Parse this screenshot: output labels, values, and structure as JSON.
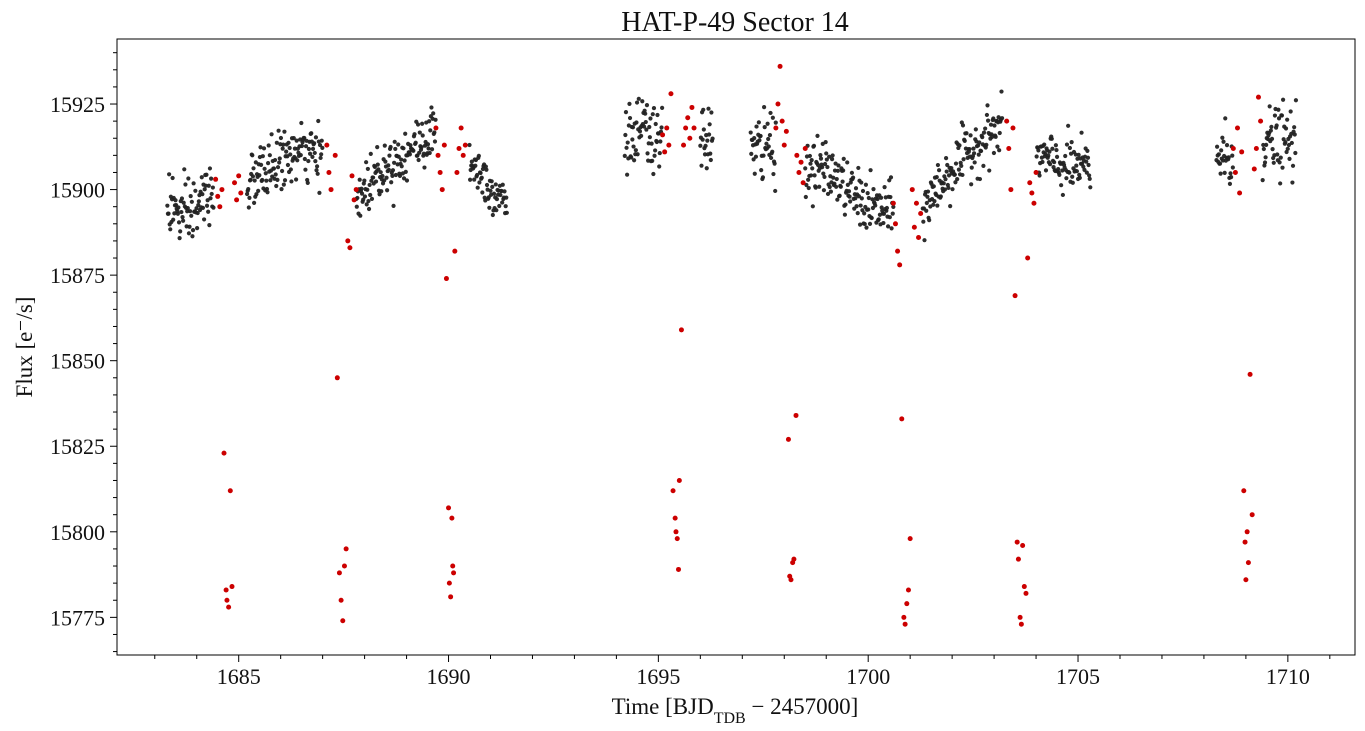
{
  "chart_data": {
    "type": "scatter",
    "title": "HAT-P-49 Sector 14",
    "xlabel": {
      "prefix": "Time [BJD",
      "subscript": "TDB",
      "suffix": " − 2457000]"
    },
    "ylabel": "Flux [e⁻/s]",
    "xlim": [
      1682.1,
      1711.6
    ],
    "ylim": [
      15764,
      15944
    ],
    "xticks": [
      1685,
      1690,
      1695,
      1700,
      1705,
      1710
    ],
    "yticks": [
      15775,
      15800,
      15825,
      15850,
      15875,
      15900,
      15925
    ],
    "grid": false,
    "legend": "none",
    "colors": {
      "out_of_transit": "#222222",
      "in_transit": "#cc0000"
    },
    "series": [
      {
        "role": "out_of_transit",
        "segments": [
          {
            "x_start": 1683.3,
            "x_end": 1684.4,
            "trend": [
              [
                1683.3,
                15897
              ],
              [
                1683.7,
                15891
              ],
              [
                1684.1,
                15896
              ],
              [
                1684.4,
                15900
              ]
            ],
            "scatter": 5
          },
          {
            "x_start": 1685.2,
            "x_end": 1687.0,
            "trend": [
              [
                1685.2,
                15901
              ],
              [
                1685.9,
                15908
              ],
              [
                1686.5,
                15911
              ],
              [
                1687.0,
                15909
              ]
            ],
            "scatter": 4
          },
          {
            "x_start": 1687.8,
            "x_end": 1689.7,
            "trend": [
              [
                1687.8,
                15897
              ],
              [
                1688.3,
                15905
              ],
              [
                1688.9,
                15910
              ],
              [
                1689.6,
                15916
              ]
            ],
            "scatter": 4
          },
          {
            "x_start": 1690.5,
            "x_end": 1691.4,
            "trend": [
              [
                1690.5,
                15910
              ],
              [
                1690.9,
                15902
              ],
              [
                1691.4,
                15897
              ]
            ],
            "scatter": 4
          },
          {
            "x_start": 1694.2,
            "x_end": 1695.1,
            "trend": [
              [
                1694.2,
                15914
              ],
              [
                1694.6,
                15917
              ],
              [
                1695.1,
                15912
              ]
            ],
            "scatter": 5
          },
          {
            "x_start": 1696.0,
            "x_end": 1696.3,
            "trend": [
              [
                1696.0,
                15915
              ],
              [
                1696.3,
                15917
              ]
            ],
            "scatter": 5
          },
          {
            "x_start": 1697.2,
            "x_end": 1697.8,
            "trend": [
              [
                1697.2,
                15910
              ],
              [
                1697.8,
                15914
              ]
            ],
            "scatter": 6
          },
          {
            "x_start": 1698.5,
            "x_end": 1700.6,
            "trend": [
              [
                1698.5,
                15906
              ],
              [
                1699.0,
                15906
              ],
              [
                1699.5,
                15900
              ],
              [
                1700.0,
                15895
              ],
              [
                1700.6,
                15893
              ]
            ],
            "scatter": 4
          },
          {
            "x_start": 1701.3,
            "x_end": 1703.2,
            "trend": [
              [
                1701.3,
                15894
              ],
              [
                1701.8,
                15903
              ],
              [
                1702.4,
                15911
              ],
              [
                1703.0,
                15917
              ]
            ],
            "scatter": 4
          },
          {
            "x_start": 1704.0,
            "x_end": 1705.3,
            "trend": [
              [
                1704.0,
                15910
              ],
              [
                1704.6,
                15907
              ],
              [
                1705.3,
                15906
              ]
            ],
            "scatter": 4
          },
          {
            "x_start": 1708.3,
            "x_end": 1708.7,
            "trend": [
              [
                1708.3,
                15910
              ],
              [
                1708.7,
                15909
              ]
            ],
            "scatter": 5
          },
          {
            "x_start": 1709.4,
            "x_end": 1710.2,
            "trend": [
              [
                1709.4,
                15914
              ],
              [
                1709.8,
                15914
              ],
              [
                1710.2,
                15913
              ]
            ],
            "scatter": 5
          }
        ]
      },
      {
        "role": "in_transit",
        "points": [
          [
            1684.45,
            15903
          ],
          [
            1684.5,
            15898
          ],
          [
            1684.55,
            15895
          ],
          [
            1684.6,
            15900
          ],
          [
            1684.65,
            15823
          ],
          [
            1684.7,
            15783
          ],
          [
            1684.72,
            15780
          ],
          [
            1684.76,
            15778
          ],
          [
            1684.8,
            15812
          ],
          [
            1684.84,
            15784
          ],
          [
            1684.9,
            15902
          ],
          [
            1684.95,
            15897
          ],
          [
            1685.0,
            15904
          ],
          [
            1685.05,
            15899
          ],
          [
            1687.1,
            15913
          ],
          [
            1687.15,
            15905
          ],
          [
            1687.2,
            15900
          ],
          [
            1687.3,
            15910
          ],
          [
            1687.35,
            15845
          ],
          [
            1687.4,
            15788
          ],
          [
            1687.44,
            15780
          ],
          [
            1687.48,
            15774
          ],
          [
            1687.52,
            15790
          ],
          [
            1687.56,
            15795
          ],
          [
            1687.6,
            15885
          ],
          [
            1687.65,
            15883
          ],
          [
            1687.7,
            15904
          ],
          [
            1687.75,
            15897
          ],
          [
            1687.8,
            15900
          ],
          [
            1689.7,
            15918
          ],
          [
            1689.75,
            15910
          ],
          [
            1689.8,
            15905
          ],
          [
            1689.85,
            15900
          ],
          [
            1689.9,
            15913
          ],
          [
            1689.95,
            15874
          ],
          [
            1690.0,
            15807
          ],
          [
            1690.02,
            15785
          ],
          [
            1690.05,
            15781
          ],
          [
            1690.08,
            15804
          ],
          [
            1690.1,
            15790
          ],
          [
            1690.12,
            15788
          ],
          [
            1690.15,
            15882
          ],
          [
            1690.2,
            15905
          ],
          [
            1690.25,
            15912
          ],
          [
            1690.3,
            15918
          ],
          [
            1690.35,
            15910
          ],
          [
            1690.4,
            15913
          ],
          [
            1695.1,
            15916
          ],
          [
            1695.15,
            15911
          ],
          [
            1695.2,
            15918
          ],
          [
            1695.25,
            15913
          ],
          [
            1695.3,
            15928
          ],
          [
            1695.35,
            15812
          ],
          [
            1695.4,
            15804
          ],
          [
            1695.42,
            15800
          ],
          [
            1695.45,
            15798
          ],
          [
            1695.48,
            15789
          ],
          [
            1695.5,
            15815
          ],
          [
            1695.55,
            15859
          ],
          [
            1695.6,
            15913
          ],
          [
            1695.65,
            15918
          ],
          [
            1695.7,
            15921
          ],
          [
            1695.75,
            15915
          ],
          [
            1695.8,
            15924
          ],
          [
            1695.85,
            15918
          ],
          [
            1697.8,
            15918
          ],
          [
            1697.85,
            15925
          ],
          [
            1697.9,
            15936
          ],
          [
            1697.95,
            15920
          ],
          [
            1698.0,
            15913
          ],
          [
            1698.05,
            15917
          ],
          [
            1698.1,
            15827
          ],
          [
            1698.13,
            15787
          ],
          [
            1698.16,
            15786
          ],
          [
            1698.2,
            15791
          ],
          [
            1698.23,
            15792
          ],
          [
            1698.28,
            15834
          ],
          [
            1698.3,
            15910
          ],
          [
            1698.35,
            15905
          ],
          [
            1698.4,
            15908
          ],
          [
            1698.45,
            15902
          ],
          [
            1698.5,
            15912
          ],
          [
            1700.6,
            15896
          ],
          [
            1700.65,
            15890
          ],
          [
            1700.7,
            15882
          ],
          [
            1700.75,
            15878
          ],
          [
            1700.8,
            15833
          ],
          [
            1700.85,
            15775
          ],
          [
            1700.88,
            15773
          ],
          [
            1700.92,
            15779
          ],
          [
            1700.96,
            15783
          ],
          [
            1701.0,
            15798
          ],
          [
            1701.05,
            15900
          ],
          [
            1701.1,
            15889
          ],
          [
            1701.15,
            15896
          ],
          [
            1701.2,
            15886
          ],
          [
            1701.25,
            15893
          ],
          [
            1703.3,
            15920
          ],
          [
            1703.35,
            15912
          ],
          [
            1703.4,
            15900
          ],
          [
            1703.45,
            15918
          ],
          [
            1703.5,
            15869
          ],
          [
            1703.55,
            15797
          ],
          [
            1703.58,
            15792
          ],
          [
            1703.62,
            15775
          ],
          [
            1703.65,
            15773
          ],
          [
            1703.68,
            15796
          ],
          [
            1703.72,
            15784
          ],
          [
            1703.76,
            15782
          ],
          [
            1703.8,
            15880
          ],
          [
            1703.85,
            15902
          ],
          [
            1703.9,
            15899
          ],
          [
            1703.95,
            15896
          ],
          [
            1704.0,
            15905
          ],
          [
            1708.7,
            15912
          ],
          [
            1708.75,
            15905
          ],
          [
            1708.8,
            15918
          ],
          [
            1708.85,
            15899
          ],
          [
            1708.9,
            15911
          ],
          [
            1708.95,
            15812
          ],
          [
            1708.98,
            15797
          ],
          [
            1709.0,
            15786
          ],
          [
            1709.03,
            15800
          ],
          [
            1709.06,
            15791
          ],
          [
            1709.1,
            15846
          ],
          [
            1709.15,
            15805
          ],
          [
            1709.2,
            15906
          ],
          [
            1709.25,
            15912
          ],
          [
            1709.3,
            15927
          ],
          [
            1709.35,
            15920
          ]
        ]
      }
    ]
  }
}
